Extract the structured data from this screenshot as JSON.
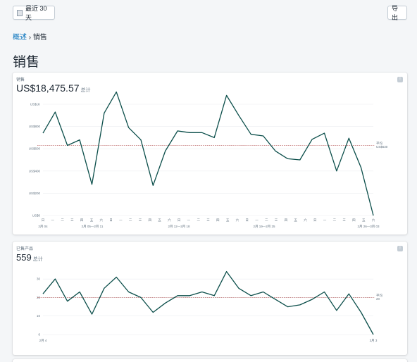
{
  "toolbar": {
    "date_range_label": "最近 30 天",
    "export_label": "导出"
  },
  "breadcrumb": {
    "parent": "概述",
    "separator": " › ",
    "current": "销售"
  },
  "page_title": "销售",
  "cards": {
    "sales": {
      "label": "销售",
      "total": "US$18,475.57",
      "total_suffix": "总计",
      "avg_label": "平均",
      "avg_value": "US$630"
    },
    "products": {
      "label": "已售产品",
      "total": "559",
      "total_suffix": "总计",
      "avg_label": "平均",
      "avg_value": "20"
    }
  },
  "chart_data": [
    {
      "type": "line",
      "title": "销售",
      "yticks": [
        "US$0",
        "US$200",
        "US$400",
        "US$600",
        "US$800",
        "US$1K"
      ],
      "ylim": [
        0,
        1000
      ],
      "x_weekday_labels": [
        "日",
        "一",
        "二",
        "三",
        "四",
        "五",
        "六",
        "日",
        "一",
        "二",
        "三",
        "四",
        "五",
        "六",
        "日",
        "一",
        "二",
        "三",
        "四",
        "五",
        "六",
        "日",
        "一",
        "二",
        "三",
        "四",
        "五",
        "六",
        "日",
        "一",
        "二",
        "三",
        "四",
        "五",
        "六"
      ],
      "x_range_labels": [
        "2月 04",
        "2月 05—2月 11",
        "2月 12—2月 18",
        "2月 19—2月 25",
        "2月 26—3月 03"
      ],
      "average": 630,
      "values": [
        740,
        930,
        630,
        680,
        280,
        920,
        1110,
        790,
        680,
        270,
        580,
        760,
        745,
        745,
        700,
        1080,
        900,
        730,
        715,
        580,
        510,
        500,
        685,
        740,
        400,
        695,
        430,
        0
      ]
    },
    {
      "type": "line",
      "title": "已售产品",
      "yticks": [
        "0",
        "10",
        "20",
        "30"
      ],
      "ylim": [
        0,
        35
      ],
      "x_range_labels": [
        "2月 4",
        "3月 3"
      ],
      "average": 20,
      "values": [
        22,
        30,
        18,
        23,
        11,
        25,
        31,
        23,
        20,
        12,
        17,
        21,
        21,
        23,
        21,
        34,
        25,
        21,
        23,
        19,
        15,
        16,
        19,
        23,
        13,
        22,
        12,
        0
      ]
    }
  ]
}
